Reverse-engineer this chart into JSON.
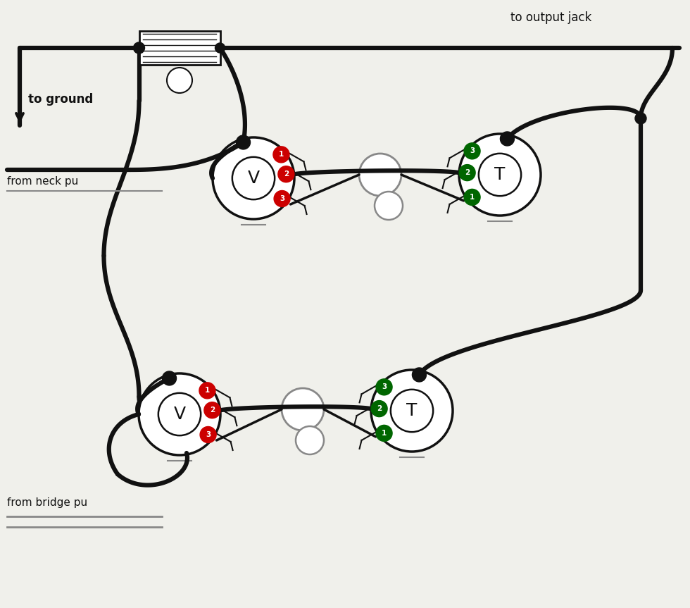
{
  "background_color": "#f0f0eb",
  "line_color": "#111111",
  "red": "#cc0000",
  "green": "#006600",
  "gray": "#888888",
  "lw_thick": 4.5,
  "lw_med": 2.5,
  "lw_thin": 1.5,
  "pot_r": 0.58,
  "texts": {
    "to_ground": "to ground",
    "to_output_jack": "to output jack",
    "from_neck_pu": "from neck pu",
    "from_bridge_pu": "from bridge pu"
  }
}
